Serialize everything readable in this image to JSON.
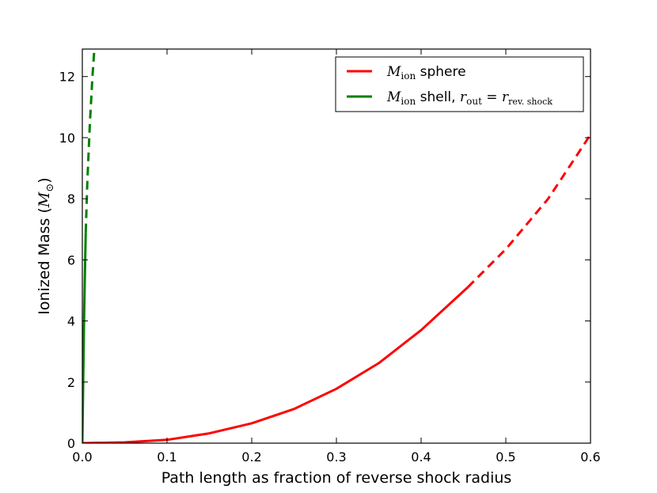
{
  "chart_data": {
    "type": "line",
    "title": "",
    "xlabel": "Path length as fraction of reverse shock radius",
    "ylabel": {
      "text": "Ionized Mass (",
      "symbol": "M",
      "subscript": "⊙",
      "close": ")"
    },
    "xlim": [
      0.0,
      0.6
    ],
    "ylim": [
      0,
      12.9
    ],
    "xticks": [
      "0.0",
      "0.1",
      "0.2",
      "0.3",
      "0.4",
      "0.5",
      "0.6"
    ],
    "yticks": [
      "0",
      "2",
      "4",
      "6",
      "8",
      "10",
      "12"
    ],
    "grid": false,
    "legend_position": "top-right",
    "series": [
      {
        "name": "M_ion sphere",
        "legend": {
          "symbol": "M",
          "subscript": "ion",
          "text": " sphere"
        },
        "color": "#ff0000",
        "solid": {
          "x": [
            0.0,
            0.05,
            0.1,
            0.15,
            0.2,
            0.25,
            0.3,
            0.35,
            0.4,
            0.455
          ],
          "y": [
            0.0,
            0.025,
            0.11,
            0.32,
            0.65,
            1.12,
            1.78,
            2.62,
            3.7,
            5.1
          ]
        },
        "dashed": {
          "x": [
            0.455,
            0.5,
            0.55,
            0.6
          ],
          "y": [
            5.1,
            6.35,
            8.0,
            10.1
          ]
        }
      },
      {
        "name": "M_ion shell, r_out = r_rev.shock",
        "legend": {
          "symbol": "M",
          "subscript": "ion",
          "text": " shell, ",
          "eq_lhs": "r",
          "eq_lhs_sub": "out",
          "eq_sign": " = ",
          "eq_rhs": "r",
          "eq_rhs_sub": "rev. shock"
        },
        "color": "#008000",
        "solid": {
          "x": [
            0.0,
            0.001,
            0.002,
            0.003,
            0.004
          ],
          "y": [
            0.0,
            2.0,
            3.9,
            5.5,
            6.9
          ]
        },
        "dashed": {
          "x": [
            0.004,
            0.006,
            0.009,
            0.012,
            0.015
          ],
          "y": [
            6.9,
            8.6,
            10.5,
            12.0,
            13.2
          ]
        }
      }
    ]
  }
}
